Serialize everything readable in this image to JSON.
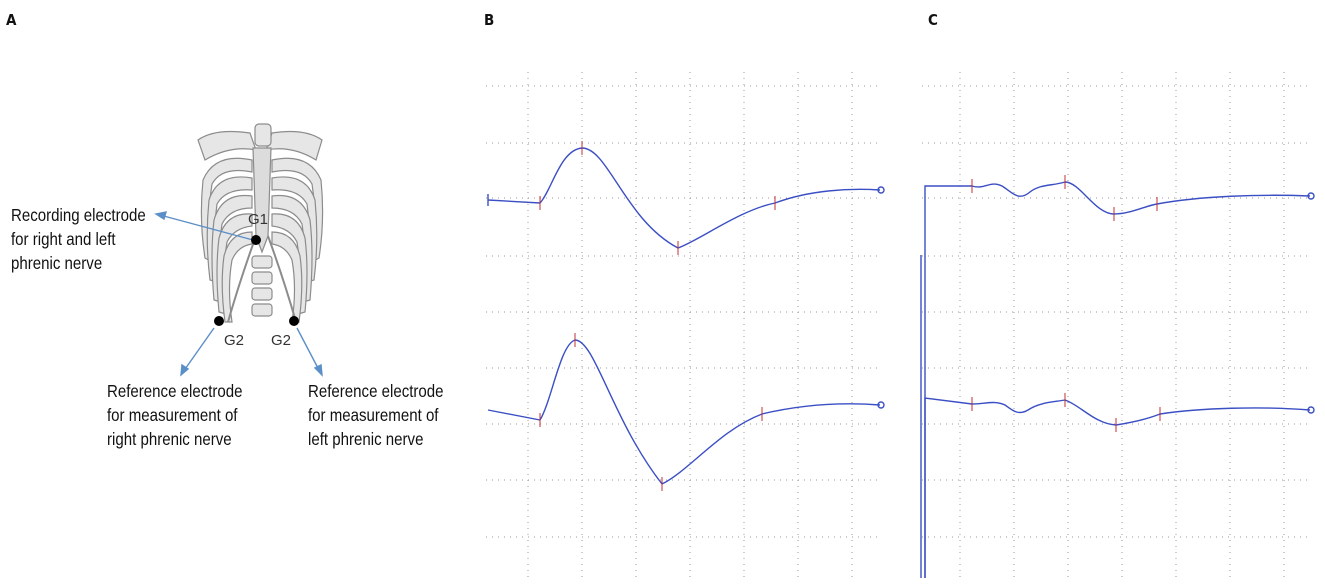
{
  "panels": {
    "a": {
      "letter": "A",
      "electrodes": {
        "g1": "G1",
        "g2_right": "G2",
        "g2_left": "G2"
      },
      "annotations": {
        "recording": "Recording electrode\nfor right and left\nphrenic nerve",
        "ref_right": "Reference electrode\nfor measurement of\nright phrenic nerve",
        "ref_left": "Reference electrode\nfor measurement of\nleft phrenic nerve"
      }
    },
    "b": {
      "letter": "B"
    },
    "c": {
      "letter": "C"
    }
  },
  "colors": {
    "trace": "#3b4fc4",
    "marker": "#c03030",
    "grid": "#9a9a9a",
    "arrow": "#5b8fc7",
    "electrode": "#000000"
  }
}
